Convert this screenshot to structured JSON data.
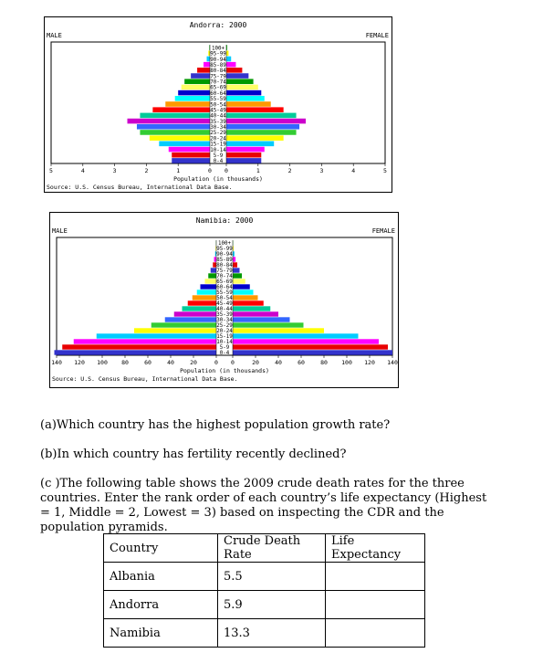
{
  "pyramids": [
    {
      "title": "Andorra: 2000",
      "male_label": "MALE",
      "female_label": "FEMALE",
      "xlabel": "Population (in thousands)",
      "source": "Source: U.S. Census Bureau, International Data Base.",
      "ticks": [
        "5",
        "4",
        "3",
        "2",
        "1",
        "0",
        "0",
        "1",
        "2",
        "3",
        "4",
        "5"
      ],
      "age_groups": [
        "100+",
        "95-99",
        "90-94",
        "85-89",
        "80-84",
        "75-79",
        "70-74",
        "65-69",
        "60-64",
        "55-59",
        "50-54",
        "45-49",
        "40-44",
        "35-39",
        "30-34",
        "25-29",
        "20-24",
        "15-19",
        "10-14",
        "5-9",
        "0-4"
      ],
      "male": [
        0.02,
        0.05,
        0.1,
        0.2,
        0.4,
        0.6,
        0.8,
        0.9,
        1.0,
        1.1,
        1.4,
        1.8,
        2.2,
        2.6,
        2.3,
        2.2,
        1.9,
        1.6,
        1.3,
        1.2,
        1.2
      ],
      "female": [
        0.03,
        0.07,
        0.15,
        0.3,
        0.5,
        0.7,
        0.85,
        1.0,
        1.1,
        1.2,
        1.4,
        1.8,
        2.2,
        2.5,
        2.3,
        2.2,
        1.8,
        1.5,
        1.2,
        1.1,
        1.1
      ],
      "max": 5,
      "colors": [
        "#3333cc",
        "#e80000",
        "#ff00ff",
        "#00ccff",
        "#ffff00",
        "#33cc33",
        "#3366ff",
        "#cc00cc",
        "#00cc99",
        "#ff0000",
        "#ff9900",
        "#00ffff",
        "#0000cc",
        "#ffff66",
        "#009900"
      ]
    },
    {
      "title": "Namibia: 2000",
      "male_label": "MALE",
      "female_label": "FEMALE",
      "xlabel": "Population (in thousands)",
      "source": "Source: U.S. Census Bureau, International Data Base.",
      "ticks": [
        "140",
        "120",
        "100",
        "80",
        "60",
        "40",
        "20",
        "0",
        "0",
        "20",
        "40",
        "60",
        "80",
        "100",
        "120",
        "140"
      ],
      "age_groups": [
        "100+",
        "95-99",
        "90-94",
        "85-89",
        "80-84",
        "75-79",
        "70-74",
        "65-69",
        "60-64",
        "55-59",
        "50-54",
        "45-49",
        "40-44",
        "35-39",
        "30-34",
        "25-29",
        "20-24",
        "15-19",
        "10-14",
        "5-9",
        "0-4"
      ],
      "male": [
        0.2,
        0.5,
        1,
        2,
        3,
        5,
        7,
        10,
        14,
        17,
        21,
        25,
        30,
        37,
        45,
        57,
        72,
        105,
        125,
        135,
        142
      ],
      "female": [
        0.3,
        0.7,
        1.5,
        2.5,
        4,
        6,
        8,
        11,
        15,
        18,
        22,
        27,
        33,
        40,
        50,
        62,
        80,
        110,
        128,
        136,
        140
      ],
      "max": 140,
      "colors": [
        "#3333cc",
        "#e80000",
        "#ff00ff",
        "#00ccff",
        "#ffff00",
        "#33cc33",
        "#3366ff",
        "#cc00cc",
        "#00cc99",
        "#ff0000",
        "#ff9900",
        "#00ffff",
        "#0000cc",
        "#ffff66",
        "#009900"
      ]
    }
  ],
  "questions": {
    "a": "(a)Which country has the highest population growth rate?",
    "b": "(b)In which country has fertility recently declined?",
    "c": "(c )The following table shows the 2009 crude death rates for the three countries. Enter the rank order of each country’s life expectancy (Highest = 1, Middle = 2, Lowest = 3) based on inspecting the CDR and the population pyramids."
  },
  "table": {
    "headers": [
      "Country",
      "Crude Death Rate",
      "Life Expectancy"
    ],
    "rows": [
      [
        "Albania",
        "5.5",
        ""
      ],
      [
        "Andorra",
        "5.9",
        ""
      ],
      [
        "Namibia",
        "13.3",
        ""
      ]
    ]
  }
}
